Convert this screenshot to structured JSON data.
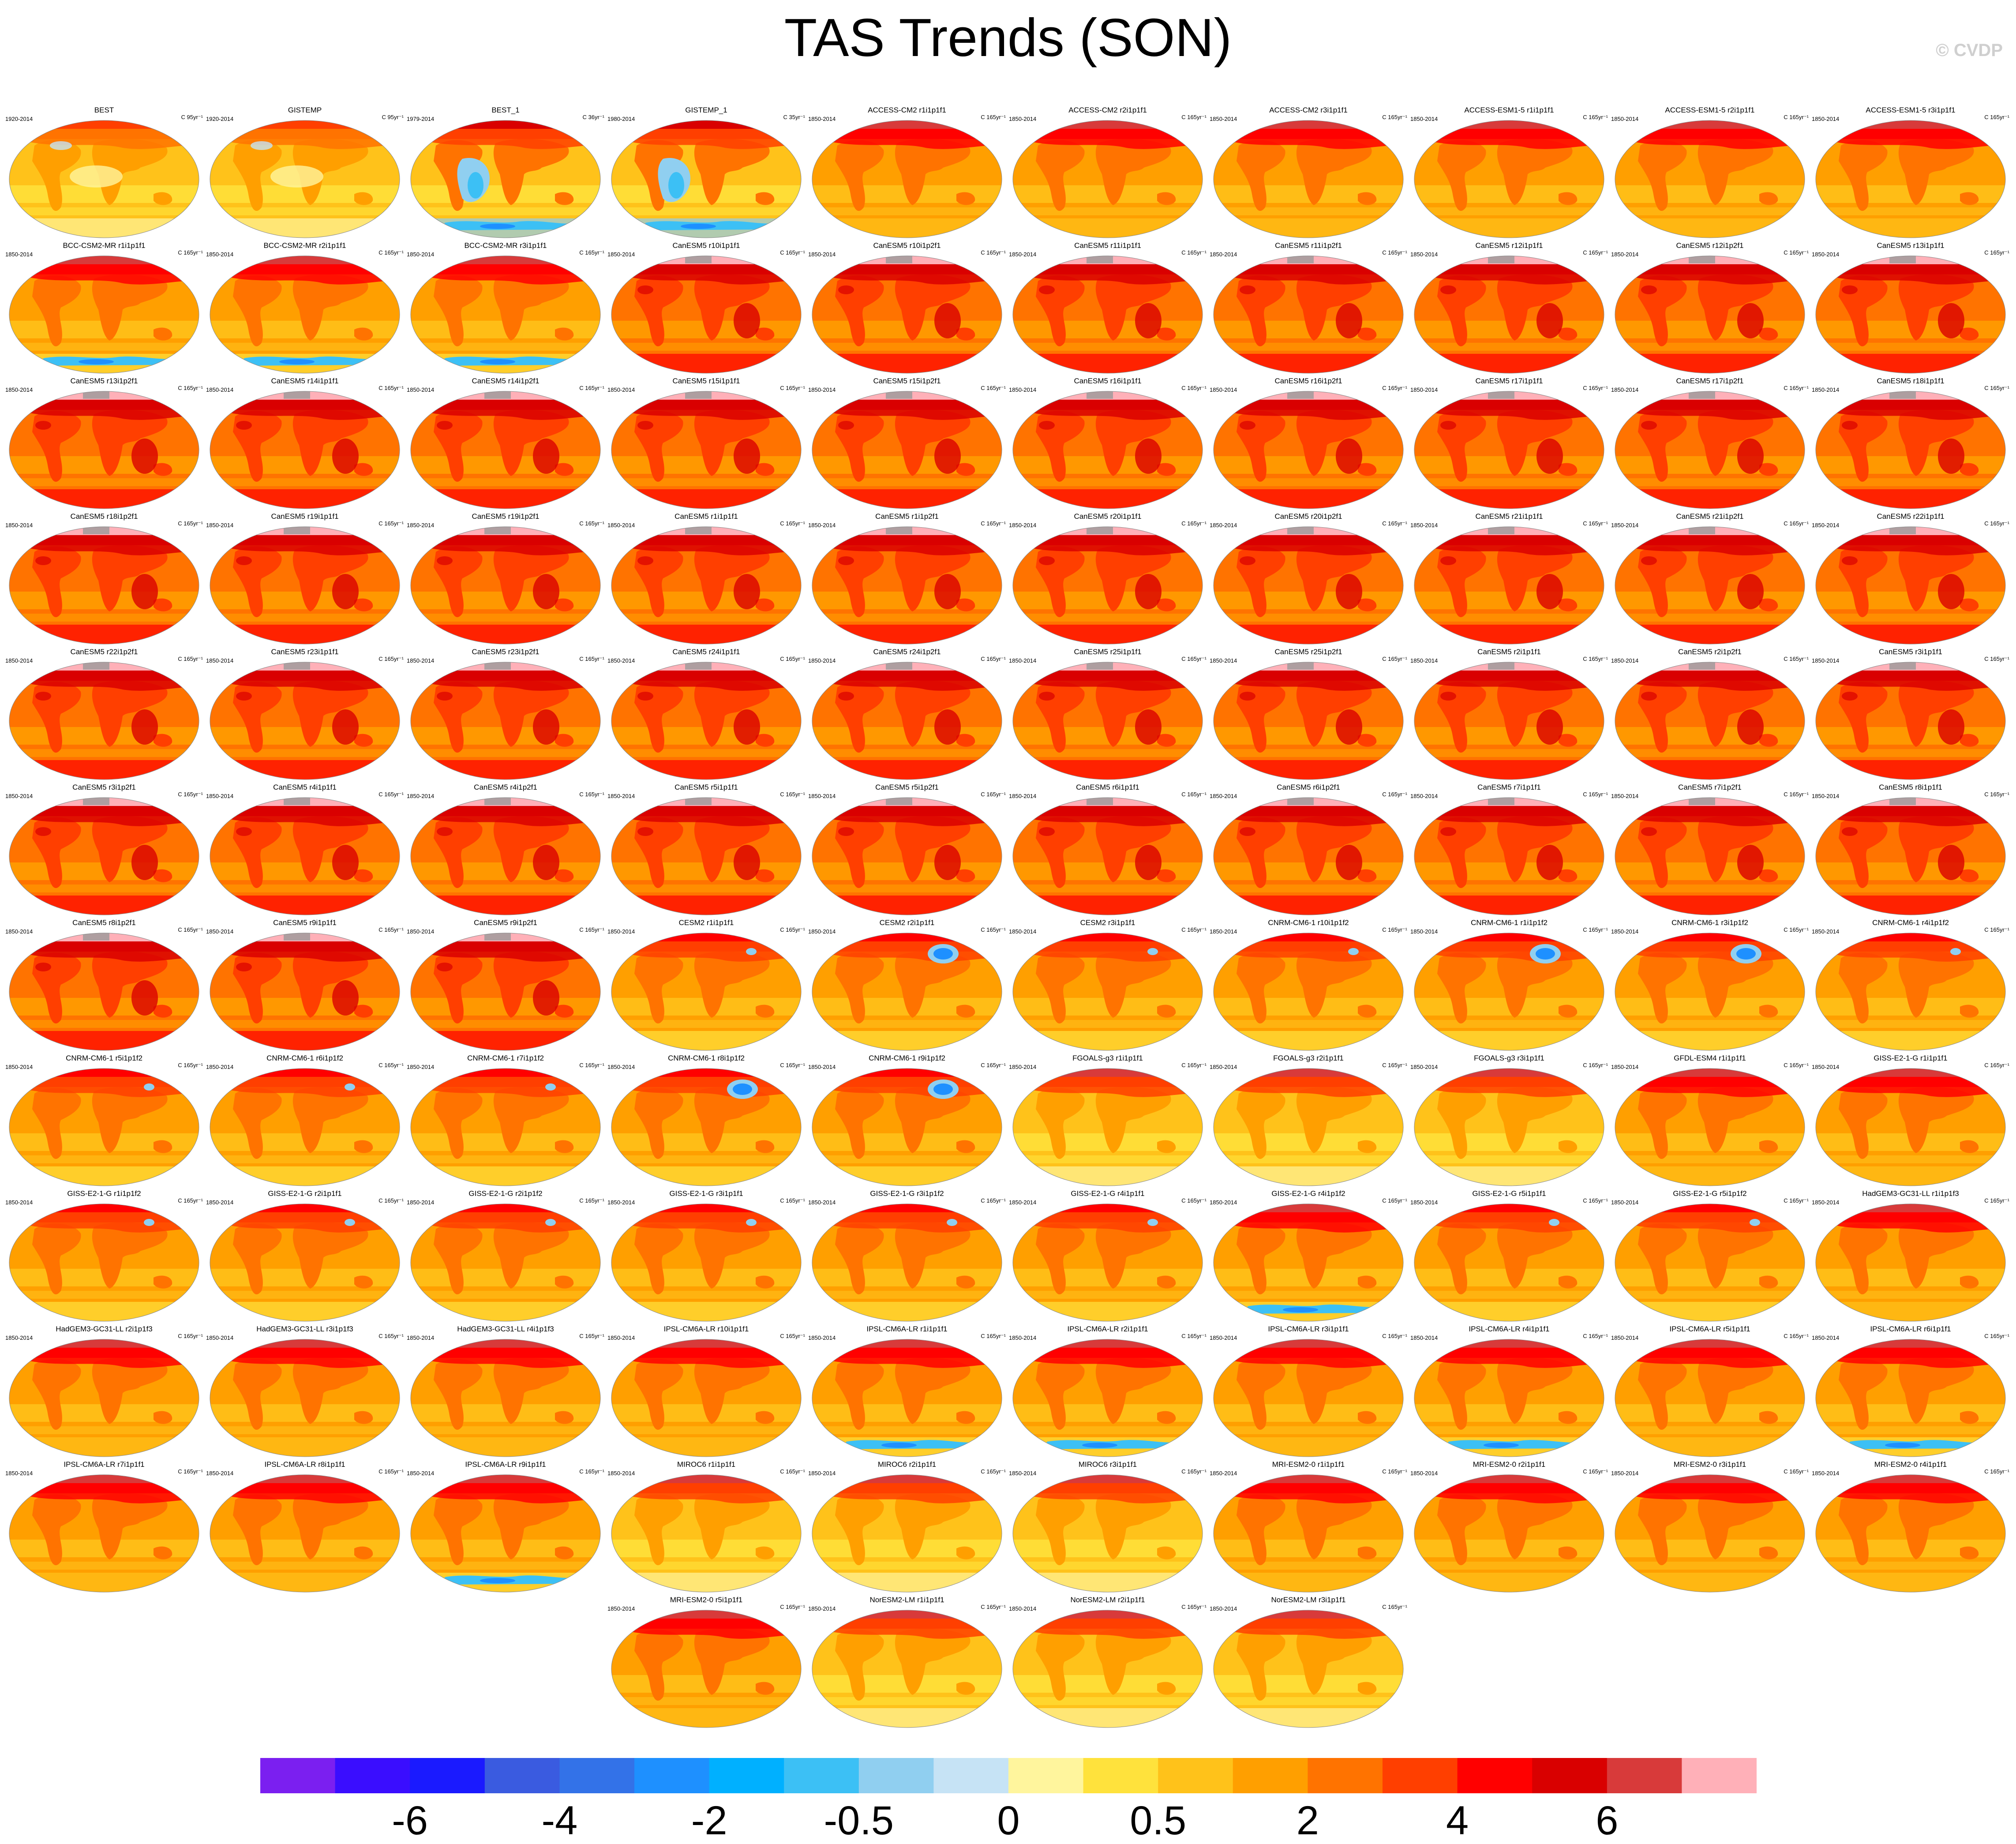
{
  "title": "TAS Trends (SON)",
  "credit": "© CVDP",
  "colorbar": {
    "colors": [
      "#7b1ff0",
      "#3a0dff",
      "#1a1aff",
      "#3a5be0",
      "#3372e8",
      "#1e90ff",
      "#00b0ff",
      "#3cc0f5",
      "#90cff0",
      "#c6e3f5",
      "#fff59d",
      "#ffe23c",
      "#ffc21a",
      "#ff9f00",
      "#ff7300",
      "#ff3f00",
      "#ff0000",
      "#d90000",
      "#d83a3a",
      "#ffb0b8"
    ],
    "labels": [
      {
        "text": "-6",
        "boundary": 2
      },
      {
        "text": "-4",
        "boundary": 4
      },
      {
        "text": "-2",
        "boundary": 6
      },
      {
        "text": "-0.5",
        "boundary": 8
      },
      {
        "text": "0",
        "boundary": 10
      },
      {
        "text": "0.5",
        "boundary": 12
      },
      {
        "text": "2",
        "boundary": 14
      },
      {
        "text": "4",
        "boundary": 16
      },
      {
        "text": "6",
        "boundary": 18
      }
    ]
  },
  "panels": [
    {
      "name": "BEST",
      "years": "1920-2014",
      "units": "C 95yr⁻¹",
      "style": "obs"
    },
    {
      "name": "GISTEMP",
      "years": "1920-2014",
      "units": "C 95yr⁻¹",
      "style": "obs"
    },
    {
      "name": "BEST_1",
      "years": "1979-2014",
      "units": "C 36yr⁻¹",
      "style": "obsc"
    },
    {
      "name": "GISTEMP_1",
      "years": "1980-2014",
      "units": "C 35yr⁻¹",
      "style": "obsc"
    },
    {
      "name": "ACCESS-CM2 r1i1p1f1",
      "years": "1850-2014",
      "units": "C 165yr⁻¹",
      "style": "warm"
    },
    {
      "name": "ACCESS-CM2 r2i1p1f1",
      "years": "1850-2014",
      "units": "C 165yr⁻¹",
      "style": "warm"
    },
    {
      "name": "ACCESS-CM2 r3i1p1f1",
      "years": "1850-2014",
      "units": "C 165yr⁻¹",
      "style": "warm"
    },
    {
      "name": "ACCESS-ESM1-5 r1i1p1f1",
      "years": "1850-2014",
      "units": "C 165yr⁻¹",
      "style": "warm"
    },
    {
      "name": "ACCESS-ESM1-5 r2i1p1f1",
      "years": "1850-2014",
      "units": "C 165yr⁻¹",
      "style": "warm"
    },
    {
      "name": "ACCESS-ESM1-5 r3i1p1f1",
      "years": "1850-2014",
      "units": "C 165yr⁻¹",
      "style": "warm"
    },
    {
      "name": "BCC-CSM2-MR r1i1p1f1",
      "years": "1850-2014",
      "units": "C 165yr⁻¹",
      "style": "south"
    },
    {
      "name": "BCC-CSM2-MR r2i1p1f1",
      "years": "1850-2014",
      "units": "C 165yr⁻¹",
      "style": "south"
    },
    {
      "name": "BCC-CSM2-MR r3i1p1f1",
      "years": "1850-2014",
      "units": "C 165yr⁻¹",
      "style": "south"
    },
    {
      "name": "CanESM5 r10i1p1f1",
      "years": "1850-2014",
      "units": "C 165yr⁻¹",
      "style": "hot"
    },
    {
      "name": "CanESM5 r10i1p2f1",
      "years": "1850-2014",
      "units": "C 165yr⁻¹",
      "style": "hot"
    },
    {
      "name": "CanESM5 r11i1p1f1",
      "years": "1850-2014",
      "units": "C 165yr⁻¹",
      "style": "hot"
    },
    {
      "name": "CanESM5 r11i1p2f1",
      "years": "1850-2014",
      "units": "C 165yr⁻¹",
      "style": "hot"
    },
    {
      "name": "CanESM5 r12i1p1f1",
      "years": "1850-2014",
      "units": "C 165yr⁻¹",
      "style": "hot"
    },
    {
      "name": "CanESM5 r12i1p2f1",
      "years": "1850-2014",
      "units": "C 165yr⁻¹",
      "style": "hot"
    },
    {
      "name": "CanESM5 r13i1p1f1",
      "years": "1850-2014",
      "units": "C 165yr⁻¹",
      "style": "hot"
    },
    {
      "name": "CanESM5 r13i1p2f1",
      "years": "1850-2014",
      "units": "C 165yr⁻¹",
      "style": "hot"
    },
    {
      "name": "CanESM5 r14i1p1f1",
      "years": "1850-2014",
      "units": "C 165yr⁻¹",
      "style": "hot"
    },
    {
      "name": "CanESM5 r14i1p2f1",
      "years": "1850-2014",
      "units": "C 165yr⁻¹",
      "style": "hot"
    },
    {
      "name": "CanESM5 r15i1p1f1",
      "years": "1850-2014",
      "units": "C 165yr⁻¹",
      "style": "hot"
    },
    {
      "name": "CanESM5 r15i1p2f1",
      "years": "1850-2014",
      "units": "C 165yr⁻¹",
      "style": "hot"
    },
    {
      "name": "CanESM5 r16i1p1f1",
      "years": "1850-2014",
      "units": "C 165yr⁻¹",
      "style": "hot"
    },
    {
      "name": "CanESM5 r16i1p2f1",
      "years": "1850-2014",
      "units": "C 165yr⁻¹",
      "style": "hot"
    },
    {
      "name": "CanESM5 r17i1p1f1",
      "years": "1850-2014",
      "units": "C 165yr⁻¹",
      "style": "hot"
    },
    {
      "name": "CanESM5 r17i1p2f1",
      "years": "1850-2014",
      "units": "C 165yr⁻¹",
      "style": "hot"
    },
    {
      "name": "CanESM5 r18i1p1f1",
      "years": "1850-2014",
      "units": "C 165yr⁻¹",
      "style": "hot"
    },
    {
      "name": "CanESM5 r18i1p2f1",
      "years": "1850-2014",
      "units": "C 165yr⁻¹",
      "style": "hot"
    },
    {
      "name": "CanESM5 r19i1p1f1",
      "years": "1850-2014",
      "units": "C 165yr⁻¹",
      "style": "hot"
    },
    {
      "name": "CanESM5 r19i1p2f1",
      "years": "1850-2014",
      "units": "C 165yr⁻¹",
      "style": "hot"
    },
    {
      "name": "CanESM5 r1i1p1f1",
      "years": "1850-2014",
      "units": "C 165yr⁻¹",
      "style": "hot"
    },
    {
      "name": "CanESM5 r1i1p2f1",
      "years": "1850-2014",
      "units": "C 165yr⁻¹",
      "style": "hot"
    },
    {
      "name": "CanESM5 r20i1p1f1",
      "years": "1850-2014",
      "units": "C 165yr⁻¹",
      "style": "hot"
    },
    {
      "name": "CanESM5 r20i1p2f1",
      "years": "1850-2014",
      "units": "C 165yr⁻¹",
      "style": "hot"
    },
    {
      "name": "CanESM5 r21i1p1f1",
      "years": "1850-2014",
      "units": "C 165yr⁻¹",
      "style": "hot"
    },
    {
      "name": "CanESM5 r21i1p2f1",
      "years": "1850-2014",
      "units": "C 165yr⁻¹",
      "style": "hot"
    },
    {
      "name": "CanESM5 r22i1p1f1",
      "years": "1850-2014",
      "units": "C 165yr⁻¹",
      "style": "hot"
    },
    {
      "name": "CanESM5 r22i1p2f1",
      "years": "1850-2014",
      "units": "C 165yr⁻¹",
      "style": "hot"
    },
    {
      "name": "CanESM5 r23i1p1f1",
      "years": "1850-2014",
      "units": "C 165yr⁻¹",
      "style": "hot"
    },
    {
      "name": "CanESM5 r23i1p2f1",
      "years": "1850-2014",
      "units": "C 165yr⁻¹",
      "style": "hot"
    },
    {
      "name": "CanESM5 r24i1p1f1",
      "years": "1850-2014",
      "units": "C 165yr⁻¹",
      "style": "hot"
    },
    {
      "name": "CanESM5 r24i1p2f1",
      "years": "1850-2014",
      "units": "C 165yr⁻¹",
      "style": "hot"
    },
    {
      "name": "CanESM5 r25i1p1f1",
      "years": "1850-2014",
      "units": "C 165yr⁻¹",
      "style": "hot"
    },
    {
      "name": "CanESM5 r25i1p2f1",
      "years": "1850-2014",
      "units": "C 165yr⁻¹",
      "style": "hot"
    },
    {
      "name": "CanESM5 r2i1p1f1",
      "years": "1850-2014",
      "units": "C 165yr⁻¹",
      "style": "hot"
    },
    {
      "name": "CanESM5 r2i1p2f1",
      "years": "1850-2014",
      "units": "C 165yr⁻¹",
      "style": "hot"
    },
    {
      "name": "CanESM5 r3i1p1f1",
      "years": "1850-2014",
      "units": "C 165yr⁻¹",
      "style": "hot"
    },
    {
      "name": "CanESM5 r3i1p2f1",
      "years": "1850-2014",
      "units": "C 165yr⁻¹",
      "style": "hot"
    },
    {
      "name": "CanESM5 r4i1p1f1",
      "years": "1850-2014",
      "units": "C 165yr⁻¹",
      "style": "hot"
    },
    {
      "name": "CanESM5 r4i1p2f1",
      "years": "1850-2014",
      "units": "C 165yr⁻¹",
      "style": "hot"
    },
    {
      "name": "CanESM5 r5i1p1f1",
      "years": "1850-2014",
      "units": "C 165yr⁻¹",
      "style": "hot"
    },
    {
      "name": "CanESM5 r5i1p2f1",
      "years": "1850-2014",
      "units": "C 165yr⁻¹",
      "style": "hot"
    },
    {
      "name": "CanESM5 r6i1p1f1",
      "years": "1850-2014",
      "units": "C 165yr⁻¹",
      "style": "hot"
    },
    {
      "name": "CanESM5 r6i1p2f1",
      "years": "1850-2014",
      "units": "C 165yr⁻¹",
      "style": "hot"
    },
    {
      "name": "CanESM5 r7i1p1f1",
      "years": "1850-2014",
      "units": "C 165yr⁻¹",
      "style": "hot"
    },
    {
      "name": "CanESM5 r7i1p2f1",
      "years": "1850-2014",
      "units": "C 165yr⁻¹",
      "style": "hot"
    },
    {
      "name": "CanESM5 r8i1p1f1",
      "years": "1850-2014",
      "units": "C 165yr⁻¹",
      "style": "hot"
    },
    {
      "name": "CanESM5 r8i1p2f1",
      "years": "1850-2014",
      "units": "C 165yr⁻¹",
      "style": "hot"
    },
    {
      "name": "CanESM5 r9i1p1f1",
      "years": "1850-2014",
      "units": "C 165yr⁻¹",
      "style": "hot"
    },
    {
      "name": "CanESM5 r9i1p2f1",
      "years": "1850-2014",
      "units": "C 165yr⁻¹",
      "style": "hot"
    },
    {
      "name": "CESM2 r1i1p1f1",
      "years": "1850-2014",
      "units": "C 165yr⁻¹",
      "style": "mild"
    },
    {
      "name": "CESM2 r2i1p1f1",
      "years": "1850-2014",
      "units": "C 165yr⁻¹",
      "style": "atl"
    },
    {
      "name": "CESM2 r3i1p1f1",
      "years": "1850-2014",
      "units": "C 165yr⁻¹",
      "style": "mild"
    },
    {
      "name": "CNRM-CM6-1 r10i1p1f2",
      "years": "1850-2014",
      "units": "C 165yr⁻¹",
      "style": "mild"
    },
    {
      "name": "CNRM-CM6-1 r1i1p1f2",
      "years": "1850-2014",
      "units": "C 165yr⁻¹",
      "style": "atl"
    },
    {
      "name": "CNRM-CM6-1 r3i1p1f2",
      "years": "1850-2014",
      "units": "C 165yr⁻¹",
      "style": "atl"
    },
    {
      "name": "CNRM-CM6-1 r4i1p1f2",
      "years": "1850-2014",
      "units": "C 165yr⁻¹",
      "style": "mild"
    },
    {
      "name": "CNRM-CM6-1 r5i1p1f2",
      "years": "1850-2014",
      "units": "C 165yr⁻¹",
      "style": "mild"
    },
    {
      "name": "CNRM-CM6-1 r6i1p1f2",
      "years": "1850-2014",
      "units": "C 165yr⁻¹",
      "style": "mild"
    },
    {
      "name": "CNRM-CM6-1 r7i1p1f2",
      "years": "1850-2014",
      "units": "C 165yr⁻¹",
      "style": "mild"
    },
    {
      "name": "CNRM-CM6-1 r8i1p1f2",
      "years": "1850-2014",
      "units": "C 165yr⁻¹",
      "style": "atl"
    },
    {
      "name": "CNRM-CM6-1 r9i1p1f2",
      "years": "1850-2014",
      "units": "C 165yr⁻¹",
      "style": "atl"
    },
    {
      "name": "FGOALS-g3 r1i1p1f1",
      "years": "1850-2014",
      "units": "C 165yr⁻¹",
      "style": "light"
    },
    {
      "name": "FGOALS-g3 r2i1p1f1",
      "years": "1850-2014",
      "units": "C 165yr⁻¹",
      "style": "light"
    },
    {
      "name": "FGOALS-g3 r3i1p1f1",
      "years": "1850-2014",
      "units": "C 165yr⁻¹",
      "style": "light"
    },
    {
      "name": "GFDL-ESM4 r1i1p1f1",
      "years": "1850-2014",
      "units": "C 165yr⁻¹",
      "style": "warm"
    },
    {
      "name": "GISS-E2-1-G r1i1p1f1",
      "years": "1850-2014",
      "units": "C 165yr⁻¹",
      "style": "warm"
    },
    {
      "name": "GISS-E2-1-G r1i1p1f2",
      "years": "1850-2014",
      "units": "C 165yr⁻¹",
      "style": "mild"
    },
    {
      "name": "GISS-E2-1-G r2i1p1f1",
      "years": "1850-2014",
      "units": "C 165yr⁻¹",
      "style": "mild"
    },
    {
      "name": "GISS-E2-1-G r2i1p1f2",
      "years": "1850-2014",
      "units": "C 165yr⁻¹",
      "style": "mild"
    },
    {
      "name": "GISS-E2-1-G r3i1p1f1",
      "years": "1850-2014",
      "units": "C 165yr⁻¹",
      "style": "mild"
    },
    {
      "name": "GISS-E2-1-G r3i1p1f2",
      "years": "1850-2014",
      "units": "C 165yr⁻¹",
      "style": "mild"
    },
    {
      "name": "GISS-E2-1-G r4i1p1f1",
      "years": "1850-2014",
      "units": "C 165yr⁻¹",
      "style": "mild"
    },
    {
      "name": "GISS-E2-1-G r4i1p1f2",
      "years": "1850-2014",
      "units": "C 165yr⁻¹",
      "style": "south"
    },
    {
      "name": "GISS-E2-1-G r5i1p1f1",
      "years": "1850-2014",
      "units": "C 165yr⁻¹",
      "style": "mild"
    },
    {
      "name": "GISS-E2-1-G r5i1p1f2",
      "years": "1850-2014",
      "units": "C 165yr⁻¹",
      "style": "mild"
    },
    {
      "name": "HadGEM3-GC31-LL r1i1p1f3",
      "years": "1850-2014",
      "units": "C 165yr⁻¹",
      "style": "warm"
    },
    {
      "name": "HadGEM3-GC31-LL r2i1p1f3",
      "years": "1850-2014",
      "units": "C 165yr⁻¹",
      "style": "warm"
    },
    {
      "name": "HadGEM3-GC31-LL r3i1p1f3",
      "years": "1850-2014",
      "units": "C 165yr⁻¹",
      "style": "warm"
    },
    {
      "name": "HadGEM3-GC31-LL r4i1p1f3",
      "years": "1850-2014",
      "units": "C 165yr⁻¹",
      "style": "warm"
    },
    {
      "name": "IPSL-CM6A-LR r10i1p1f1",
      "years": "1850-2014",
      "units": "C 165yr⁻¹",
      "style": "warm"
    },
    {
      "name": "IPSL-CM6A-LR r1i1p1f1",
      "years": "1850-2014",
      "units": "C 165yr⁻¹",
      "style": "south"
    },
    {
      "name": "IPSL-CM6A-LR r2i1p1f1",
      "years": "1850-2014",
      "units": "C 165yr⁻¹",
      "style": "south"
    },
    {
      "name": "IPSL-CM6A-LR r3i1p1f1",
      "years": "1850-2014",
      "units": "C 165yr⁻¹",
      "style": "warm"
    },
    {
      "name": "IPSL-CM6A-LR r4i1p1f1",
      "years": "1850-2014",
      "units": "C 165yr⁻¹",
      "style": "south"
    },
    {
      "name": "IPSL-CM6A-LR r5i1p1f1",
      "years": "1850-2014",
      "units": "C 165yr⁻¹",
      "style": "warm"
    },
    {
      "name": "IPSL-CM6A-LR r6i1p1f1",
      "years": "1850-2014",
      "units": "C 165yr⁻¹",
      "style": "south"
    },
    {
      "name": "IPSL-CM6A-LR r7i1p1f1",
      "years": "1850-2014",
      "units": "C 165yr⁻¹",
      "style": "warm"
    },
    {
      "name": "IPSL-CM6A-LR r8i1p1f1",
      "years": "1850-2014",
      "units": "C 165yr⁻¹",
      "style": "warm"
    },
    {
      "name": "IPSL-CM6A-LR r9i1p1f1",
      "years": "1850-2014",
      "units": "C 165yr⁻¹",
      "style": "south"
    },
    {
      "name": "MIROC6 r1i1p1f1",
      "years": "1850-2014",
      "units": "C 165yr⁻¹",
      "style": "light"
    },
    {
      "name": "MIROC6 r2i1p1f1",
      "years": "1850-2014",
      "units": "C 165yr⁻¹",
      "style": "light"
    },
    {
      "name": "MIROC6 r3i1p1f1",
      "years": "1850-2014",
      "units": "C 165yr⁻¹",
      "style": "light"
    },
    {
      "name": "MRI-ESM2-0 r1i1p1f1",
      "years": "1850-2014",
      "units": "C 165yr⁻¹",
      "style": "warm"
    },
    {
      "name": "MRI-ESM2-0 r2i1p1f1",
      "years": "1850-2014",
      "units": "C 165yr⁻¹",
      "style": "warm"
    },
    {
      "name": "MRI-ESM2-0 r3i1p1f1",
      "years": "1850-2014",
      "units": "C 165yr⁻¹",
      "style": "warm"
    },
    {
      "name": "MRI-ESM2-0 r4i1p1f1",
      "years": "1850-2014",
      "units": "C 165yr⁻¹",
      "style": "warm"
    },
    {
      "name": "MRI-ESM2-0 r5i1p1f1",
      "years": "1850-2014",
      "units": "C 165yr⁻¹",
      "style": "warm"
    },
    {
      "name": "NorESM2-LM r1i1p1f1",
      "years": "1850-2014",
      "units": "C 165yr⁻¹",
      "style": "light"
    },
    {
      "name": "NorESM2-LM r2i1p1f1",
      "years": "1850-2014",
      "units": "C 165yr⁻¹",
      "style": "light"
    },
    {
      "name": "NorESM2-LM r3i1p1f1",
      "years": "1850-2014",
      "units": "C 165yr⁻¹",
      "style": "light"
    }
  ]
}
